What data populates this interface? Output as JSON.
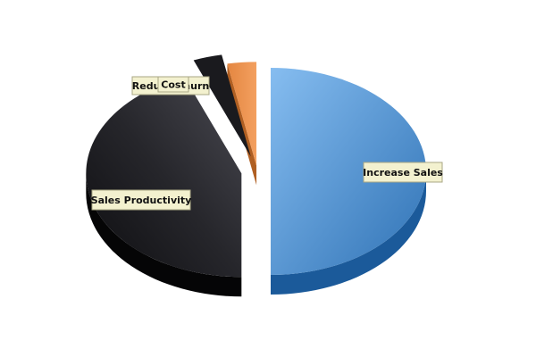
{
  "chart_data": {
    "type": "pie",
    "title": "",
    "style": "3d-exploded",
    "slices": [
      {
        "label": "Increase Sales",
        "value": 50,
        "color": "#5b9bd5"
      },
      {
        "label": "Sales Productivity",
        "value": 44,
        "color": "#2a2a2e"
      },
      {
        "label": "Reduce Churn",
        "value": 3,
        "color": "#1f1f22"
      },
      {
        "label": "Cost",
        "value": 3,
        "color": "#e8914a"
      }
    ]
  }
}
